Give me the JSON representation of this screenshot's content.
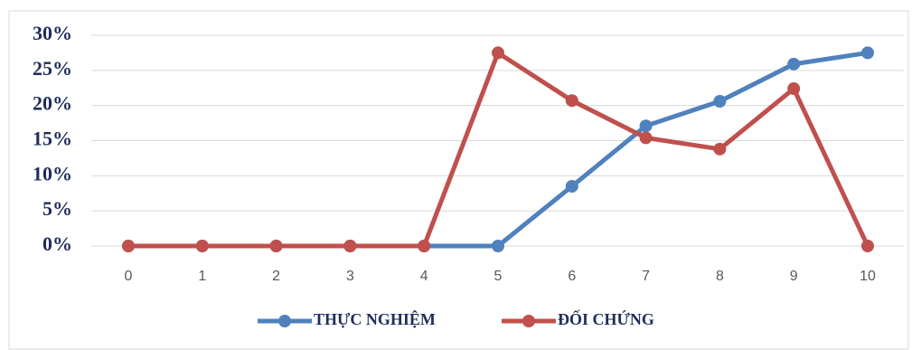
{
  "chart_data": {
    "type": "line",
    "categories": [
      "0",
      "1",
      "2",
      "3",
      "4",
      "5",
      "6",
      "7",
      "8",
      "9",
      "10"
    ],
    "series": [
      {
        "name": "THỰC NGHIỆM",
        "color": "#4f81bd",
        "values": [
          0,
          0,
          0,
          0,
          0,
          0,
          8.5,
          17.1,
          20.6,
          25.9,
          27.5
        ]
      },
      {
        "name": "ĐỐI CHỨNG",
        "color": "#c0504d",
        "values": [
          0,
          0,
          0,
          0,
          0,
          27.5,
          20.7,
          15.4,
          13.8,
          22.4,
          0
        ]
      }
    ],
    "ylim": [
      0,
      30
    ],
    "yticks": [
      {
        "value": 0,
        "label": "0%"
      },
      {
        "value": 5,
        "label": "5%"
      },
      {
        "value": 10,
        "label": "10%"
      },
      {
        "value": 15,
        "label": "15%"
      },
      {
        "value": 20,
        "label": "20%"
      },
      {
        "value": 25,
        "label": "25%"
      },
      {
        "value": 30,
        "label": "30%"
      }
    ],
    "grid": true,
    "legend": "bottom"
  }
}
